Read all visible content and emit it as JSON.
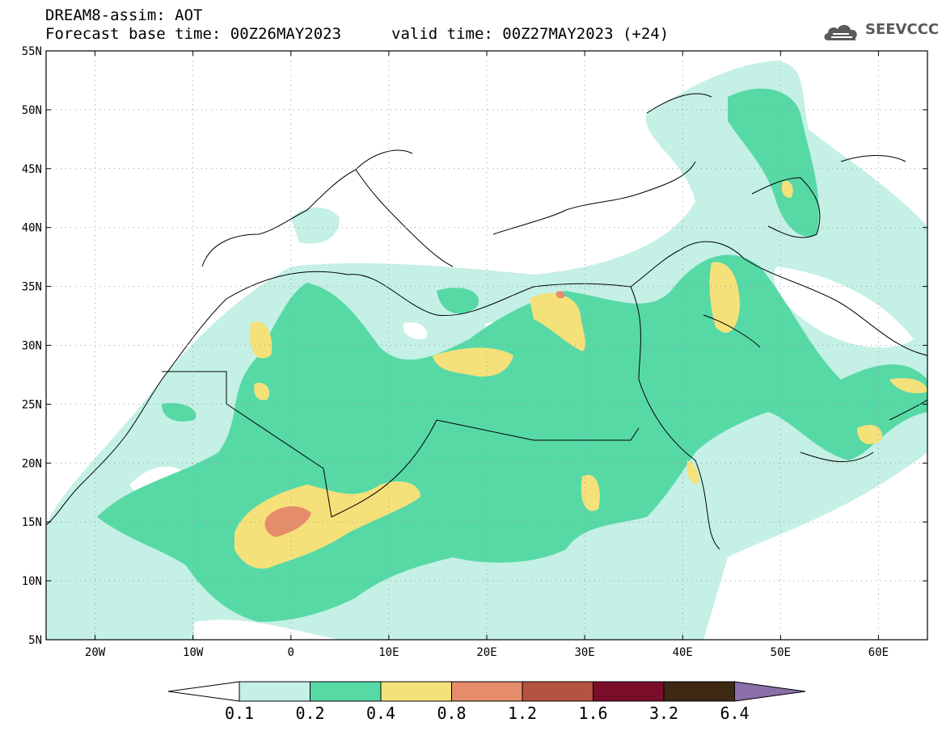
{
  "header": {
    "title": "DREAM8-assim: AOT",
    "base_time": "Forecast base time: 00Z26MAY2023",
    "valid_time": "valid time: 00Z27MAY2023 (+24)",
    "logo": "SEEVCCC"
  },
  "map": {
    "lon_range": [
      -25,
      65
    ],
    "lat_range": [
      5,
      55
    ],
    "lat_labels": [
      "55N",
      "50N",
      "45N",
      "40N",
      "35N",
      "30N",
      "25N",
      "20N",
      "15N",
      "10N",
      "5N"
    ],
    "lat_values": [
      55,
      50,
      45,
      40,
      35,
      30,
      25,
      20,
      15,
      10,
      5
    ],
    "lon_labels": [
      "20W",
      "10W",
      "0",
      "10E",
      "20E",
      "30E",
      "40E",
      "50E",
      "60E"
    ],
    "lon_values": [
      -20,
      -10,
      0,
      10,
      20,
      30,
      40,
      50,
      60
    ]
  },
  "colorbar": {
    "labels": [
      "0.1",
      "0.2",
      "0.4",
      "0.8",
      "1.2",
      "1.6",
      "3.2",
      "6.4"
    ],
    "colors": [
      "#ffffff",
      "#c4f0e6",
      "#57d9a6",
      "#f5e17a",
      "#e58c6a",
      "#b55240",
      "#7a0e2a",
      "#3d2814",
      "#8a6fa8"
    ],
    "levels": [
      0.1,
      0.2,
      0.4,
      0.8,
      1.2,
      1.6,
      3.2,
      6.4
    ]
  }
}
